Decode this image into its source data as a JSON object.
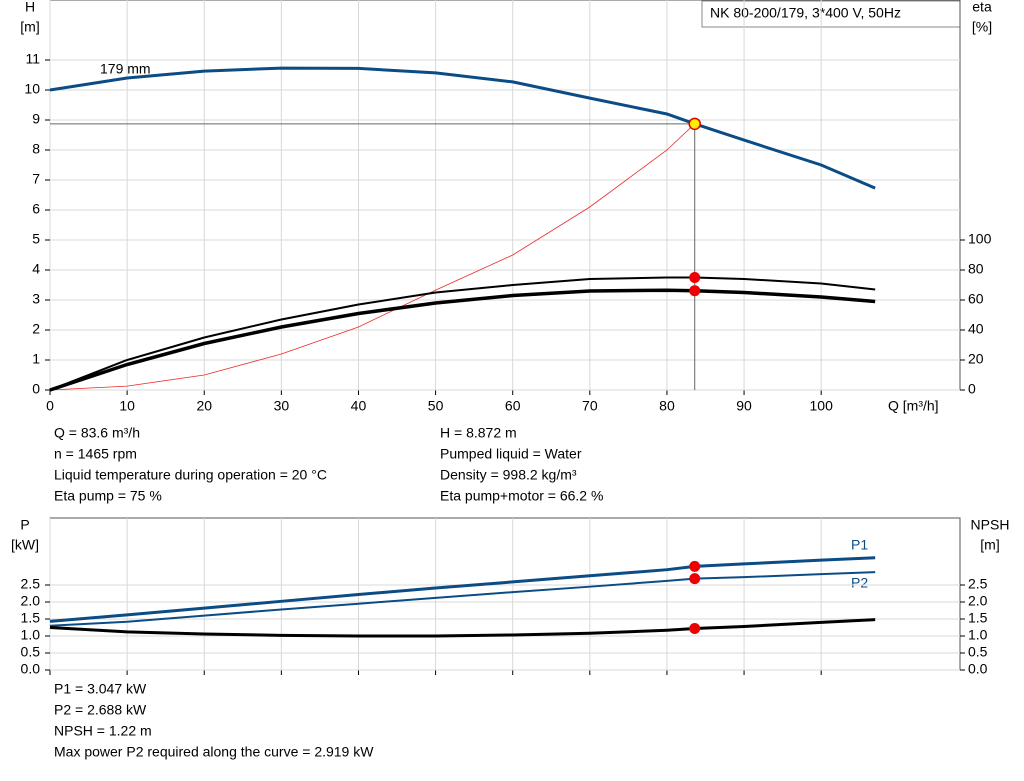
{
  "title": "NK 80-200/179, 3*400 V, 50Hz",
  "chart_data": [
    {
      "type": "line",
      "ylabel": "H",
      "yunit": "[m]",
      "y2label": "eta",
      "y2unit": "[%]",
      "xlabel": "Q [m³/h]",
      "x": [
        0,
        10,
        20,
        30,
        40,
        50,
        60,
        70,
        80,
        83.6,
        90,
        100,
        107
      ],
      "xlim": [
        0,
        118
      ],
      "xticks": [
        0,
        10,
        20,
        30,
        40,
        50,
        60,
        70,
        80,
        90,
        100
      ],
      "ylim": [
        0,
        13
      ],
      "yticks": [
        0,
        1,
        2,
        3,
        4,
        5,
        6,
        7,
        8,
        9,
        10,
        11
      ],
      "y2lim": [
        0,
        260
      ],
      "y2ticks": [
        0,
        20,
        40,
        60,
        80,
        100
      ],
      "grid": true,
      "marker_x": 83.6,
      "series": [
        {
          "name": "179 mm",
          "color": "#0b4c86",
          "width": 3,
          "marker": "#ffee00",
          "values": [
            10.0,
            10.4,
            10.63,
            10.73,
            10.72,
            10.57,
            10.27,
            9.73,
            9.2,
            8.872,
            8.33,
            7.5,
            6.73
          ]
        },
        {
          "color": "#ee2a2a",
          "width": 0.8,
          "values": [
            0,
            0.13,
            0.5,
            1.2,
            2.1,
            3.33,
            4.5,
            6.1,
            8.0,
            8.872,
            null,
            null,
            null
          ]
        },
        {
          "color": "#000000",
          "width": 2,
          "axis": "y2",
          "marker": "#ee0000",
          "values": [
            0,
            20,
            35,
            47,
            57,
            65,
            70,
            74,
            75,
            75,
            74,
            71,
            67
          ]
        },
        {
          "color": "#000000",
          "width": 3.5,
          "axis": "y2",
          "marker": "#ee0000",
          "values": [
            0,
            17,
            31,
            42,
            51,
            58,
            63,
            66,
            66.5,
            66.2,
            65,
            62,
            59
          ]
        }
      ]
    },
    {
      "type": "line",
      "ylabel": "P",
      "yunit": "[kW]",
      "y2label": "NPSH",
      "y2unit": "[m]",
      "x": [
        0,
        10,
        20,
        30,
        40,
        50,
        60,
        70,
        80,
        83.6,
        90,
        100,
        107
      ],
      "xlim": [
        0,
        118
      ],
      "xticks": [
        0,
        10,
        20,
        30,
        40,
        50,
        60,
        70,
        80,
        90,
        100
      ],
      "ylim": [
        0,
        4.47
      ],
      "yticks": [
        {
          "value": 0,
          "label": "0.0"
        },
        0.5,
        {
          "value": 1,
          "label": "1.0"
        },
        1.5,
        {
          "value": 2,
          "label": "2.0"
        },
        2.5
      ],
      "y2lim": [
        0,
        4.47
      ],
      "y2ticks": [
        {
          "value": 0,
          "label": "0.0"
        },
        0.5,
        {
          "value": 1,
          "label": "1.0"
        },
        1.5,
        {
          "value": 2,
          "label": "2.0"
        },
        2.5
      ],
      "grid": true,
      "marker_x": 83.6,
      "series": [
        {
          "name": "P1",
          "color": "#0b4c86",
          "width": 3,
          "marker": "#ee0000",
          "values": [
            1.43,
            1.62,
            1.82,
            2.02,
            2.22,
            2.41,
            2.59,
            2.77,
            2.95,
            3.047,
            3.12,
            3.23,
            3.3
          ]
        },
        {
          "name": "P2",
          "color": "#0b4c86",
          "width": 2,
          "marker": "#ee0000",
          "values": [
            1.3,
            1.42,
            1.6,
            1.78,
            1.95,
            2.12,
            2.29,
            2.45,
            2.62,
            2.688,
            2.73,
            2.82,
            2.88
          ]
        },
        {
          "color": "#000000",
          "width": 3,
          "axis": "y2",
          "marker": "#ee0000",
          "values": [
            1.25,
            1.12,
            1.06,
            1.02,
            1.0,
            1.0,
            1.03,
            1.08,
            1.17,
            1.22,
            1.28,
            1.4,
            1.48
          ]
        }
      ]
    }
  ],
  "info_left": [
    "Q = 83.6 m³/h",
    "n = 1465 rpm",
    "Liquid temperature during operation = 20 °C",
    "Eta pump = 75 %"
  ],
  "info_right": [
    "H = 8.872 m",
    "Pumped liquid = Water",
    "Density = 998.2 kg/m³",
    "Eta pump+motor = 66.2 %"
  ],
  "info_bottom": [
    "P1 = 3.047 kW",
    "P2 = 2.688 kW",
    "NPSH = 1.22 m",
    "Max power P2 required along the curve = 2.919 kW"
  ]
}
